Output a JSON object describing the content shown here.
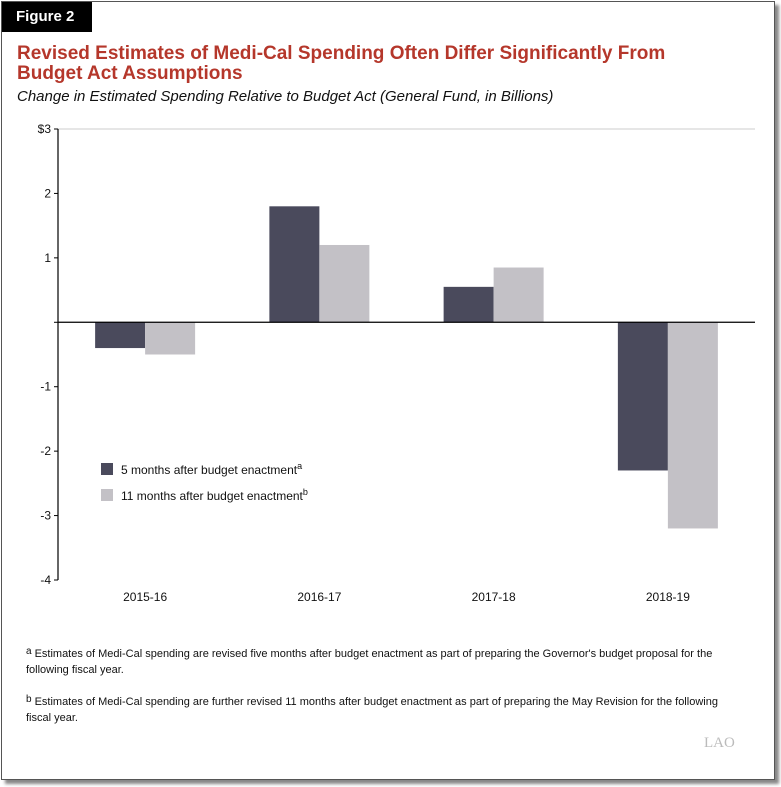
{
  "figure_label": "Figure 2",
  "chart_data": {
    "type": "bar",
    "title": "Revised Estimates of Medi-Cal Spending Often Differ Significantly From Budget Act Assumptions",
    "subtitle": "Change in Estimated Spending Relative to Budget Act (General Fund, in Billions)",
    "categories": [
      "2015-16",
      "2016-17",
      "2017-18",
      "2018-19"
    ],
    "series": [
      {
        "name": "5 months after budget enactment",
        "sup": "a",
        "color": "#4a4a5c",
        "values": [
          -0.4,
          1.8,
          0.55,
          -2.3
        ]
      },
      {
        "name": "11 months after budget enactment",
        "sup": "b",
        "color": "#c3c1c6",
        "values": [
          -0.5,
          1.2,
          0.85,
          -3.2
        ]
      }
    ],
    "ylim": [
      -4,
      3
    ],
    "yticks": [
      3,
      2,
      1,
      0,
      -1,
      -2,
      -3,
      -4
    ],
    "ytick_labels": [
      "$3",
      "2",
      "1",
      "",
      "-1",
      "-2",
      "-3",
      "-4"
    ],
    "legend_position": "lower-left",
    "grid": false
  },
  "footnotes": [
    {
      "mark": "a",
      "text": "Estimates of Medi-Cal spending are revised five months after budget enactment as part of preparing the Governor's budget proposal for the following fiscal year."
    },
    {
      "mark": "b",
      "text": "Estimates of Medi-Cal spending are further revised 11 months after budget enactment as part of preparing the May Revision for the following fiscal year."
    }
  ],
  "logo": "LAO"
}
